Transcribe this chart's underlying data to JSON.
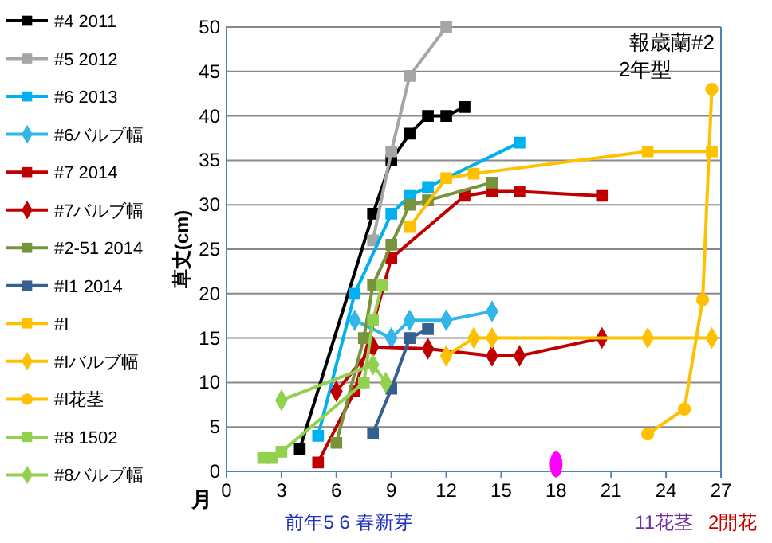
{
  "chart_data": {
    "type": "line",
    "title": "報歳蘭#2",
    "subtitle": "2年型",
    "xlabel": "月",
    "ylabel": "草丈(cm)",
    "annotations": [
      "前年5 6 春新芽",
      "11花茎",
      "2開花"
    ],
    "xlim": [
      0,
      27
    ],
    "xticks": [
      0,
      3,
      6,
      9,
      12,
      15,
      18,
      21,
      24,
      27
    ],
    "ylim": [
      0,
      50
    ],
    "yticks": [
      0,
      5,
      10,
      15,
      20,
      25,
      30,
      35,
      40,
      45,
      50
    ],
    "grid": "y",
    "legend": "left",
    "line_style": "solid",
    "series": [
      {
        "name": "#4 2011",
        "color": "#000000",
        "marker": "square",
        "x": [
          4,
          8,
          9,
          10,
          11,
          12,
          13
        ],
        "values": [
          2.5,
          29,
          35,
          38,
          40,
          40,
          41
        ]
      },
      {
        "name": "#5 2012",
        "color": "#a6a6a6",
        "marker": "square",
        "x": [
          8,
          9,
          10,
          12
        ],
        "values": [
          26,
          36,
          44.5,
          50
        ]
      },
      {
        "name": "#6 2013",
        "color": "#00b0f0",
        "marker": "square",
        "x": [
          5,
          7,
          9,
          10,
          11,
          16
        ],
        "values": [
          4,
          20,
          29,
          31,
          32,
          37
        ]
      },
      {
        "name": "#6バルブ幅",
        "color": "#31b6e7",
        "marker": "diamond",
        "x": [
          7,
          9,
          10,
          12,
          14.5
        ],
        "values": [
          17,
          15,
          17,
          17,
          18
        ]
      },
      {
        "name": "#7 2014",
        "color": "#c00000",
        "marker": "square",
        "x": [
          5,
          7,
          9,
          13,
          14.5,
          16,
          20.5
        ],
        "values": [
          1,
          9,
          24,
          31,
          31.5,
          31.5,
          31
        ]
      },
      {
        "name": "#7バルブ幅",
        "color": "#c00000",
        "marker": "diamond",
        "x": [
          6,
          8,
          11,
          14.5,
          16,
          20.5
        ],
        "values": [
          9,
          14,
          13.8,
          13,
          13,
          15
        ]
      },
      {
        "name": "#2-51 2014",
        "color": "#77933c",
        "marker": "square",
        "x": [
          6,
          7.5,
          8,
          9,
          10,
          11,
          14.5
        ],
        "values": [
          3.2,
          15,
          21,
          25.5,
          30,
          30.5,
          32.5
        ]
      },
      {
        "name": "#I1 2014",
        "color": "#376092",
        "marker": "square",
        "x": [
          8,
          9,
          10,
          11
        ],
        "values": [
          4.3,
          9.3,
          15,
          16
        ]
      },
      {
        "name": "#I",
        "color": "#ffc000",
        "marker": "square",
        "x": [
          10,
          12,
          13.5,
          23,
          26.5
        ],
        "values": [
          27.5,
          33,
          33.5,
          36,
          36
        ]
      },
      {
        "name": "#Iバルブ幅",
        "color": "#ffc000",
        "marker": "diamond",
        "x": [
          12,
          13.5,
          14.5,
          23,
          26.5
        ],
        "values": [
          13,
          15,
          15,
          15,
          15
        ]
      },
      {
        "name": "#I花茎",
        "color": "#ffc000",
        "marker": "circle",
        "x": [
          23,
          25,
          26,
          26.5
        ],
        "values": [
          4.2,
          7,
          19.3,
          43
        ]
      },
      {
        "name": "#8 1502",
        "color": "#92d050",
        "marker": "square",
        "x": [
          2,
          2.5,
          3,
          7.5,
          8,
          8.5
        ],
        "values": [
          1.5,
          1.5,
          2.2,
          10,
          17,
          21
        ]
      },
      {
        "name": "#8バルブ幅",
        "color": "#92d050",
        "marker": "diamond",
        "x": [
          3,
          8,
          8.7
        ],
        "values": [
          8,
          12,
          10
        ]
      },
      {
        "type": "scatter",
        "color": "#ff00ff",
        "marker": "circle",
        "x": [
          18
        ],
        "values": [
          0.8
        ]
      }
    ]
  }
}
